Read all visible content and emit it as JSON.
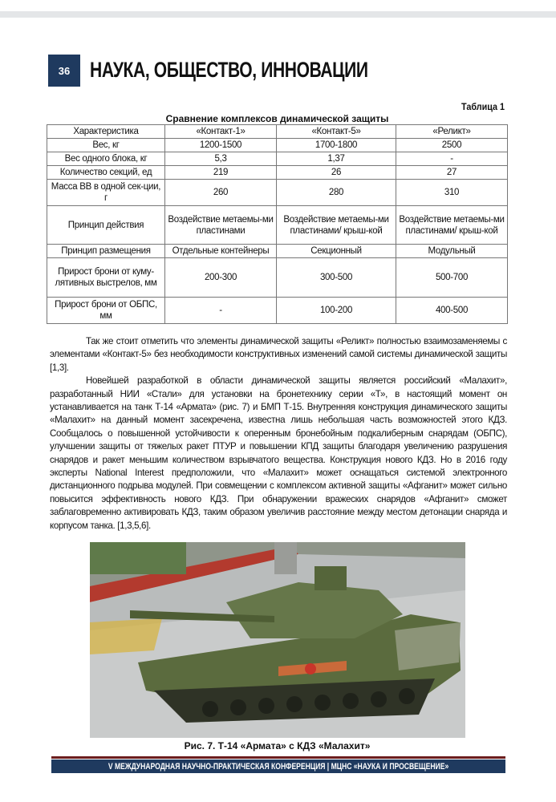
{
  "header": {
    "page_number": "36",
    "section_title": "НАУКА, ОБЩЕСТВО, ИННОВАЦИИ"
  },
  "table": {
    "number": "Таблица 1",
    "caption": "Сравнение комплексов динамической защиты",
    "columns": [
      "Характеристика",
      "«Контакт-1»",
      "«Контакт-5»",
      "«Реликт»"
    ],
    "rows": [
      [
        "Вес, кг",
        "1200-1500",
        "1700-1800",
        "2500"
      ],
      [
        "Вес одного блока, кг",
        "5,3",
        "1,37",
        "-"
      ],
      [
        "Количество секций, ед",
        "219",
        "26",
        "27"
      ],
      [
        "Масса ВВ в одной сек-ции, г",
        "260",
        "280",
        "310"
      ],
      [
        "Принцип действия",
        "Воздействие метаемы-ми пластинами",
        "Воздействие метаемы-ми пластинами/ крыш-кой",
        "Воздействие метаемы-ми пластинами/ крыш-кой"
      ],
      [
        "Принцип размещения",
        "Отдельные контейнеры",
        "Секционный",
        "Модульный"
      ],
      [
        "Прирост брони от куму-лятивных выстрелов, мм",
        "200-300",
        "300-500",
        "500-700"
      ],
      [
        "Прирост брони от ОБПС, мм",
        "-",
        "100-200",
        "400-500"
      ]
    ]
  },
  "body": {
    "paragraphs": [
      "Так же стоит отметить что элементы динамической защиты «Реликт» полностью взаимозаменяемы с элементами «Контакт-5» без необходимости конструктивных изменений самой системы динамической защиты [1,3].",
      "Новейшей разработкой в области динамической защиты является российский «Малахит», разработанный НИИ «Стали» для установки на бронетехнику серии «Т», в настоящий момент он устанавливается на танк Т-14 «Армата» (рис. 7) и БМП Т-15. Внутренняя конструкция динамического защиты «Малахит» на данный момент засекречена, известна лишь небольшая часть возможностей этого КДЗ. Сообщалось о повышенной устойчивости к оперенным бронебойным подкалиберным снарядам (ОБПС), улучшении защиты от тяжелых ракет ПТУР и повышении КПД защиты благодаря увеличению разрушения снарядов и ракет меньшим количеством взрывчатого вещества. Конструкция нового КДЗ. Но в 2016 году эксперты National Interest предположили, что «Малахит» может оснащаться системой электронного дистанционного подрыва модулей. При совмещении с комплексом активной защиты «Афганит» может сильно повысится эффективность нового КДЗ. При обнаружении вражеских снарядов «Афганит» сможет заблаговременно активировать КДЗ, таким образом увеличив расстояние между местом детонации снаряда и корпусом танка. [1,3,5,6]."
    ]
  },
  "figure": {
    "caption": "Рис. 7. Т-14 «Армата» с КДЗ «Малахит»"
  },
  "footer": {
    "text": "V МЕЖДУНАРОДНАЯ НАУЧНО-ПРАКТИЧЕСКАЯ КОНФЕРЕНЦИЯ   |  МЦНС «НАУКА И ПРОСВЕЩЕНИЕ»"
  },
  "colors": {
    "navy": "#1f3a5f",
    "maroon": "#6b1d1d",
    "tank_green": "#5b6b3e"
  }
}
